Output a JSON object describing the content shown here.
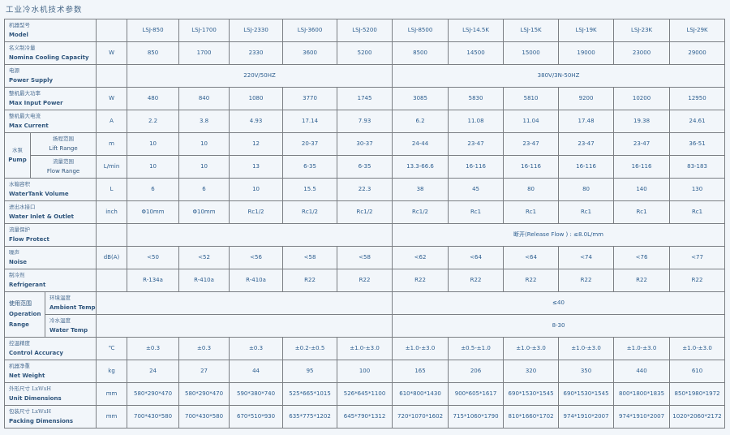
{
  "title": "工业冷水机技术参数",
  "models": [
    "LSJ-850",
    "LSJ-1700",
    "LSJ-2330",
    "LSJ-3600",
    "LSJ-5200",
    "LSJ-8500",
    "LSJ-14.5K",
    "LSJ-15K",
    "LSJ-19K",
    "LSJ-23K",
    "LSJ-29K"
  ],
  "rows": {
    "model": {
      "cn": "机器型号",
      "en": "Model"
    },
    "cooling": {
      "cn": "名义制冷量",
      "en": "Nomina Cooling Capacity",
      "unit": "W",
      "values": [
        "850",
        "1700",
        "2330",
        "3600",
        "5200",
        "8500",
        "14500",
        "15000",
        "19000",
        "23000",
        "29000"
      ]
    },
    "power": {
      "cn": "电源",
      "en": "Power Supply",
      "span_a": "220V/50HZ",
      "span_b": "380V/3N-50HZ"
    },
    "input_power": {
      "cn": "整机最大功率",
      "en": "Max Input Power",
      "unit": "W",
      "values": [
        "480",
        "840",
        "1080",
        "3770",
        "1745",
        "3085",
        "5830",
        "5810",
        "9200",
        "10200",
        "12950"
      ]
    },
    "current": {
      "cn": "整机最大电流",
      "en": "Max Current",
      "unit": "A",
      "values": [
        "2.2",
        "3.8",
        "4.93",
        "17.14",
        "7.93",
        "6.2",
        "11.08",
        "11.04",
        "17.48",
        "19.38",
        "24.61"
      ]
    },
    "pump": {
      "cn": "水泵",
      "en": "Pump",
      "lift": {
        "cn": "扬程范围",
        "en": "Lift Range",
        "unit": "m",
        "values": [
          "10",
          "10",
          "12",
          "20-37",
          "30-37",
          "24-44",
          "23-47",
          "23-47",
          "23-47",
          "23-47",
          "36-51"
        ]
      },
      "flow": {
        "cn": "流量范围",
        "en": "Flow Range",
        "unit": "L/min",
        "values": [
          "10",
          "10",
          "13",
          "6-35",
          "6-35",
          "13.3-66.6",
          "16-116",
          "16-116",
          "16-116",
          "16-116",
          "83-183"
        ]
      }
    },
    "tank": {
      "cn": "水箱容积",
      "en": "WaterTank Volume",
      "unit": "L",
      "values": [
        "6",
        "6",
        "10",
        "15.5",
        "22.3",
        "38",
        "45",
        "80",
        "80",
        "140",
        "130"
      ]
    },
    "inlet": {
      "cn": "进出水接口",
      "en": "Water Inlet & Outlet",
      "unit": "inch",
      "values": [
        "Φ10mm",
        "Φ10mm",
        "Rc1/2",
        "Rc1/2",
        "Rc1/2",
        "Rc1/2",
        "Rc1",
        "Rc1",
        "Rc1",
        "Rc1",
        "Rc1"
      ]
    },
    "flow_protect": {
      "cn": "流量保护",
      "en": "Flow Protect",
      "span_b": "断开(Release Flow ) : ≤8.0L/mm"
    },
    "noise": {
      "cn": "噪声",
      "en": "Noise",
      "unit": "dB(A)",
      "values": [
        "<50",
        "<52",
        "<56",
        "<58",
        "<58",
        "<62",
        "<64",
        "<64",
        "<74",
        "<76",
        "<77"
      ]
    },
    "refrigerant": {
      "cn": "制冷剂",
      "en": "Refrigerant",
      "values": [
        "R-134a",
        "R-410a",
        "R-410a",
        "R22",
        "R22",
        "R22",
        "R22",
        "R22",
        "R22",
        "R22",
        "R22"
      ]
    },
    "operation": {
      "cn": "使用范围",
      "en1": "Operation",
      "en2": "Range",
      "ambient": {
        "cn": "环境温度",
        "en": "Ambient Temp",
        "value": "≤40"
      },
      "water": {
        "cn": "冷水温度",
        "en": "Water Temp",
        "value": "8-30"
      }
    },
    "accuracy": {
      "cn": "控温精度",
      "en": "Control Accuracy",
      "unit": "℃",
      "values": [
        "±0.3",
        "±0.3",
        "±0.3",
        "±0.2-±0.5",
        "±1.0-±3.0",
        "±1.0-±3.0",
        "±0.5-±1.0",
        "±1.0-±3.0",
        "±1.0-±3.0",
        "±1.0-±3.0",
        "±1.0-±3.0"
      ]
    },
    "weight": {
      "cn": "机器净重",
      "en": "Net Weight",
      "unit": "kg",
      "values": [
        "24",
        "27",
        "44",
        "95",
        "100",
        "165",
        "206",
        "320",
        "350",
        "440",
        "610"
      ]
    },
    "unit_dim": {
      "cn": "外形尺寸 LxWxH",
      "en": "Unit Dimensions",
      "unit": "mm",
      "values": [
        "580*290*470",
        "580*290*470",
        "590*380*740",
        "525*665*1015",
        "526*645*1100",
        "610*800*1430",
        "900*605*1617",
        "690*1530*1545",
        "690*1530*1545",
        "800*1800*1835",
        "850*1980*1972"
      ]
    },
    "pack_dim": {
      "cn": "包装尺寸 LxWxH",
      "en": "Packing Dimensions",
      "unit": "mm",
      "values": [
        "700*430*580",
        "700*430*580",
        "670*510*930",
        "635*775*1202",
        "645*790*1312",
        "720*1070*1602",
        "715*1060*1790",
        "810*1660*1702",
        "974*1910*2007",
        "974*1910*2007",
        "1020*2060*2172"
      ]
    }
  }
}
